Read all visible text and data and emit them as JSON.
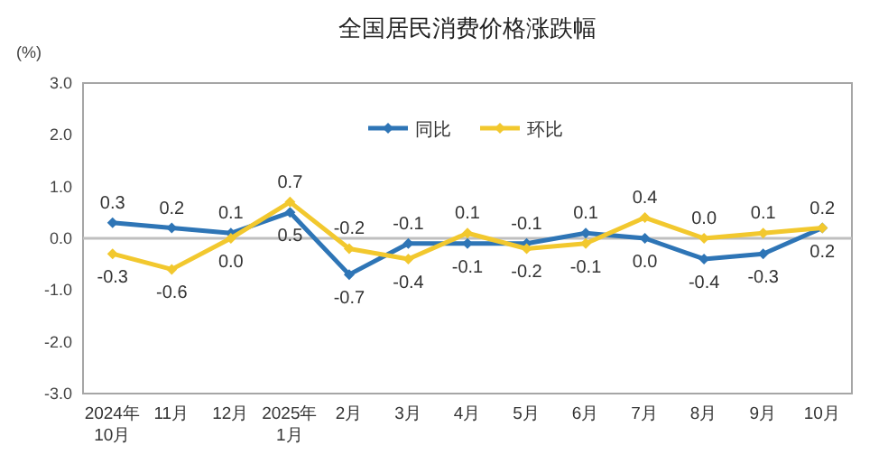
{
  "chart_data": {
    "type": "line",
    "title": "全国居民消费价格涨跌幅",
    "ylabel": "(%)",
    "categories": [
      "2024年\n10月",
      "11月",
      "12月",
      "2025年\n1月",
      "2月",
      "3月",
      "4月",
      "5月",
      "6月",
      "7月",
      "8月",
      "9月",
      "10月"
    ],
    "series": [
      {
        "name": "同比",
        "color": "#2e75b6",
        "values": [
          0.3,
          0.2,
          0.1,
          0.5,
          -0.7,
          -0.1,
          -0.1,
          -0.1,
          0.1,
          0.0,
          -0.4,
          -0.3,
          0.2
        ],
        "value_labels": [
          "0.3",
          "0.2",
          "0.1",
          "0.5",
          "-0.7",
          "-0.1",
          "-0.1",
          "-0.1",
          "0.1",
          "0.0",
          "-0.4",
          "-0.3",
          "0.2"
        ]
      },
      {
        "name": "环比",
        "color": "#f2c82e",
        "values": [
          -0.3,
          -0.6,
          0.0,
          0.7,
          -0.2,
          -0.4,
          0.1,
          -0.2,
          -0.1,
          0.4,
          0.0,
          0.1,
          0.2
        ],
        "value_labels": [
          "-0.3",
          "-0.6",
          "0.0",
          "0.7",
          "-0.2",
          "-0.4",
          "0.1",
          "-0.2",
          "-0.1",
          "0.4",
          "0.0",
          "0.1",
          "0.2"
        ]
      }
    ],
    "ylim": [
      -3,
      3
    ],
    "yticks": [
      {
        "value": 3,
        "label": "3.0"
      },
      {
        "value": 2,
        "label": "2.0"
      },
      {
        "value": 1,
        "label": "1.0"
      },
      {
        "value": 0,
        "label": "0.0"
      },
      {
        "value": -1,
        "label": "-1.0"
      },
      {
        "value": -2,
        "label": "-2.0"
      },
      {
        "value": -3,
        "label": "-3.0"
      }
    ],
    "ref_lines": [
      {
        "axis": "y",
        "value": 0,
        "color": "#bfbfbf"
      }
    ],
    "legend": "top",
    "grid": false,
    "marker": "diamond",
    "line_style": "solid"
  }
}
